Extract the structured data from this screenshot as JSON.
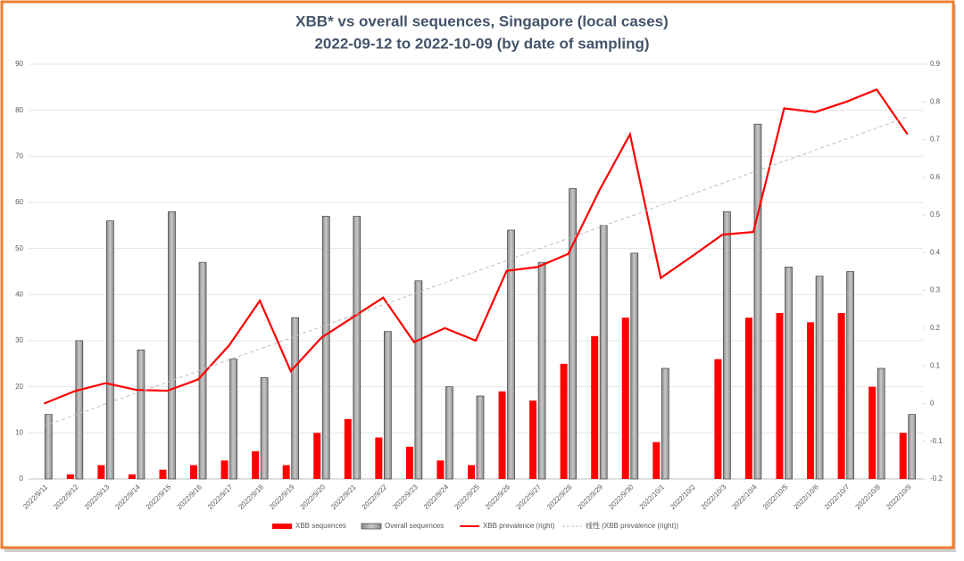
{
  "chart_data": {
    "type": "bar",
    "title": "XBB* vs overall sequences, Singapore (local cases)",
    "subtitle": "2022-09-12 to 2022-10-09 (by date of sampling)",
    "categories": [
      "2022/9/11",
      "2022/9/12",
      "2022/9/13",
      "2022/9/14",
      "2022/9/15",
      "2022/9/16",
      "2022/9/17",
      "2022/9/18",
      "2022/9/19",
      "2022/9/20",
      "2022/9/21",
      "2022/9/22",
      "2022/9/23",
      "2022/9/24",
      "2022/9/25",
      "2022/9/26",
      "2022/9/27",
      "2022/9/28",
      "2022/9/29",
      "2022/9/30",
      "2022/10/1",
      "2022/10/2",
      "2022/10/3",
      "2022/10/4",
      "2022/10/5",
      "2022/10/6",
      "2022/10/7",
      "2022/10/8",
      "2022/10/9"
    ],
    "series": [
      {
        "name": "XBB sequences",
        "color": "#ff0000",
        "kind": "bar",
        "values": [
          0,
          1,
          3,
          1,
          2,
          3,
          4,
          6,
          3,
          10,
          13,
          9,
          7,
          4,
          3,
          19,
          17,
          25,
          31,
          35,
          8,
          null,
          26,
          35,
          36,
          34,
          36,
          20,
          10
        ]
      },
      {
        "name": "Overall sequences",
        "color": "#a6a6a6",
        "kind": "bar",
        "values": [
          14,
          30,
          56,
          28,
          58,
          47,
          26,
          22,
          35,
          57,
          57,
          32,
          43,
          20,
          18,
          54,
          47,
          63,
          55,
          49,
          24,
          null,
          58,
          77,
          46,
          44,
          45,
          24,
          14
        ]
      },
      {
        "name": "XBB prevalence (right)",
        "color": "#ff0000",
        "kind": "line",
        "axis": "y2",
        "values": [
          0,
          0.033,
          0.054,
          0.036,
          0.034,
          0.064,
          0.154,
          0.273,
          0.086,
          0.175,
          0.228,
          0.281,
          0.163,
          0.2,
          0.167,
          0.352,
          0.362,
          0.397,
          0.564,
          0.714,
          0.333,
          0.39,
          0.448,
          0.455,
          0.783,
          0.773,
          0.8,
          0.833,
          0.714
        ]
      },
      {
        "name": "线性 (XBB prevalence (right))",
        "color": "#bfbfbf",
        "kind": "dashed",
        "axis": "y2",
        "values": [
          -0.06,
          -0.031,
          -0.001,
          0.028,
          0.057,
          0.086,
          0.116,
          0.145,
          0.174,
          0.204,
          0.233,
          0.262,
          0.291,
          0.321,
          0.35,
          0.379,
          0.409,
          0.438,
          0.467,
          0.496,
          0.526,
          0.555,
          0.584,
          0.614,
          0.643,
          0.672,
          0.701,
          0.731,
          0.76
        ]
      }
    ],
    "ylim": [
      0,
      90
    ],
    "yticks": [
      0,
      10,
      20,
      30,
      40,
      50,
      60,
      70,
      80,
      90
    ],
    "y2lim": [
      -0.2,
      0.9
    ],
    "y2ticks": [
      -0.2,
      -0.1,
      0,
      0.1,
      0.2,
      0.3,
      0.4,
      0.5,
      0.6,
      0.7,
      0.8,
      0.9
    ],
    "grid": true,
    "legend": "bottom"
  }
}
